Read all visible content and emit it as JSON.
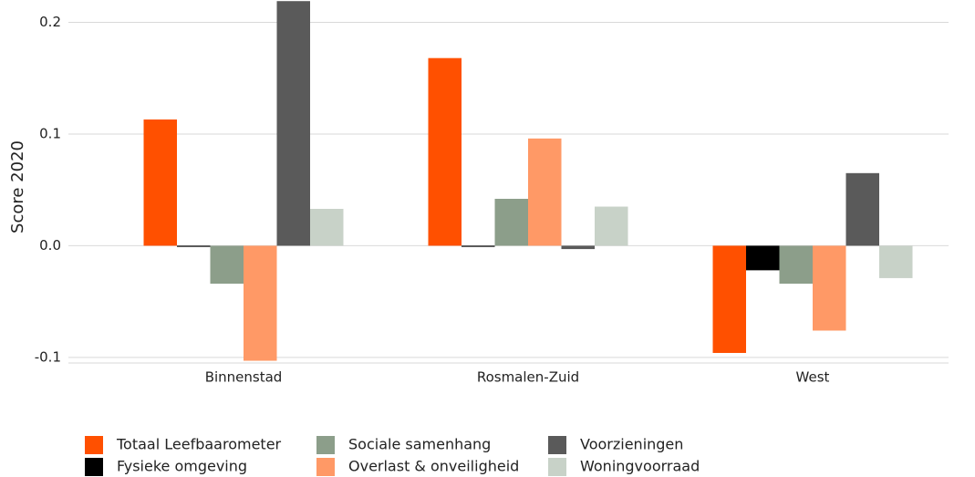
{
  "chart_data": {
    "type": "bar",
    "ylabel": "Score 2020",
    "categories": [
      "Binnenstad",
      "Rosmalen-Zuid",
      "West"
    ],
    "series": [
      {
        "name": "Totaal Leefbaarometer",
        "color": "#ff5000",
        "values": [
          0.113,
          0.168,
          -0.096
        ]
      },
      {
        "name": "Fysieke omgeving",
        "color": "#000000",
        "values": [
          -0.001,
          -0.001,
          -0.022
        ]
      },
      {
        "name": "Sociale samenhang",
        "color": "#8c9e8a",
        "values": [
          -0.034,
          0.042,
          -0.034
        ]
      },
      {
        "name": "Overlast & onveiligheid",
        "color": "#ff9966",
        "values": [
          -0.103,
          0.096,
          -0.076
        ]
      },
      {
        "name": "Voorzieningen",
        "color": "#5a5a5a",
        "values": [
          0.219,
          -0.003,
          0.065
        ]
      },
      {
        "name": "Woningvoorraad",
        "color": "#c8d2c8",
        "values": [
          0.033,
          0.035,
          -0.029
        ]
      }
    ],
    "ylim": [
      -0.105,
      0.22
    ],
    "yticks": [
      -0.1,
      {
        "value": 0,
        "label": "0.0"
      },
      0.1,
      0.2
    ],
    "grid": true,
    "legend": "bottom-left"
  }
}
